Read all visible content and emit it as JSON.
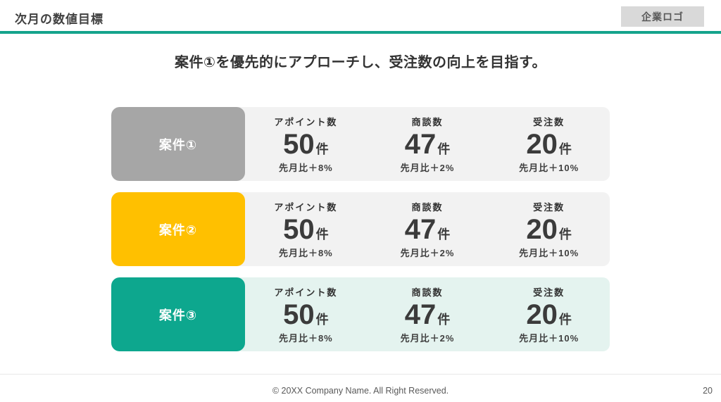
{
  "colors": {
    "accent_rule": "#14A38C",
    "logo_bg": "#D9D9D9"
  },
  "header": {
    "title": "次月の数値目標",
    "logo_label": "企業ロゴ"
  },
  "subtitle": "案件①を優先的にアプローチし、受注数の向上を目指す。",
  "rows": [
    {
      "label": "案件①",
      "label_bg": "#A6A6A6",
      "panel_bg": "#F2F2F2",
      "stats": [
        {
          "metric": "アポイント数",
          "value": "50",
          "unit": "件",
          "comparison": "先月比＋8%"
        },
        {
          "metric": "商談数",
          "value": "47",
          "unit": "件",
          "comparison": "先月比＋2%"
        },
        {
          "metric": "受注数",
          "value": "20",
          "unit": "件",
          "comparison": "先月比＋10%"
        }
      ]
    },
    {
      "label": "案件②",
      "label_bg": "#FFC000",
      "panel_bg": "#F2F2F2",
      "stats": [
        {
          "metric": "アポイント数",
          "value": "50",
          "unit": "件",
          "comparison": "先月比＋8%"
        },
        {
          "metric": "商談数",
          "value": "47",
          "unit": "件",
          "comparison": "先月比＋2%"
        },
        {
          "metric": "受注数",
          "value": "20",
          "unit": "件",
          "comparison": "先月比＋10%"
        }
      ]
    },
    {
      "label": "案件③",
      "label_bg": "#0DA78E",
      "panel_bg": "#E4F3EF",
      "stats": [
        {
          "metric": "アポイント数",
          "value": "50",
          "unit": "件",
          "comparison": "先月比＋8%"
        },
        {
          "metric": "商談数",
          "value": "47",
          "unit": "件",
          "comparison": "先月比＋2%"
        },
        {
          "metric": "受注数",
          "value": "20",
          "unit": "件",
          "comparison": "先月比＋10%"
        }
      ]
    }
  ],
  "footer": {
    "copyright": "© 20XX Company Name. All Right Reserved.",
    "page_number": "20"
  }
}
